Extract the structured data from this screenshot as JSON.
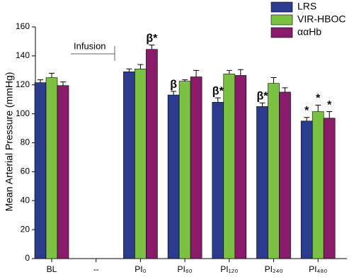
{
  "chart_data": {
    "type": "bar",
    "y_label": "Mean Arterial Pressure (mmHg)",
    "annotation": "Infusion",
    "categories": [
      "BL",
      "--",
      "PI₀",
      "PI₆₀",
      "PI₁₂₀",
      "PI₂₄₀",
      "PI₄₈₀"
    ],
    "series": [
      {
        "name": "LRS",
        "color": "#2b3c8f",
        "values": [
          121.5,
          null,
          129,
          113,
          108,
          105,
          95
        ],
        "errors": [
          2,
          null,
          2,
          2.5,
          3,
          2.5,
          2.5
        ],
        "markers": [
          null,
          null,
          null,
          "β",
          "β*",
          "β*",
          "*"
        ]
      },
      {
        "name": "VIR-HBOC",
        "color": "#7cc242",
        "values": [
          125,
          null,
          131,
          122.5,
          127.5,
          121,
          101.5
        ],
        "errors": [
          3,
          null,
          3,
          1,
          2.5,
          4,
          4.5
        ],
        "markers": [
          null,
          null,
          null,
          null,
          null,
          null,
          "*"
        ]
      },
      {
        "name": "ααHb",
        "color": "#8a1a6a",
        "values": [
          119.5,
          null,
          144.5,
          125.5,
          126.5,
          115,
          97
        ],
        "errors": [
          2.5,
          null,
          3,
          4.5,
          4,
          3,
          4.5
        ],
        "markers": [
          null,
          null,
          "β*",
          null,
          null,
          null,
          "*"
        ]
      }
    ],
    "ylim": [
      0,
      160
    ],
    "yticks": [
      0,
      20,
      40,
      60,
      80,
      100,
      120,
      140,
      160
    ],
    "legend": "upper right"
  }
}
